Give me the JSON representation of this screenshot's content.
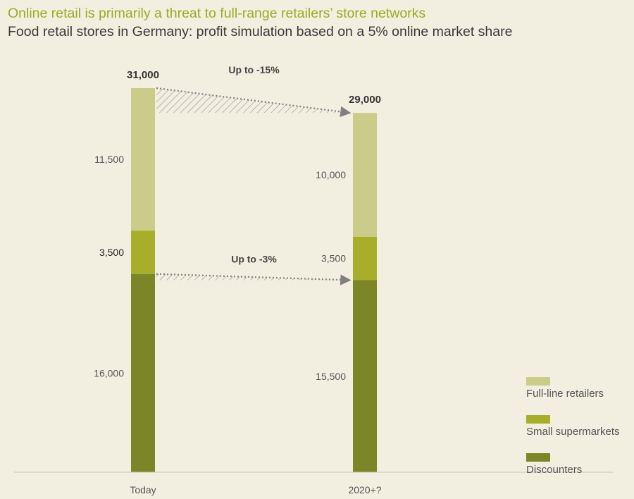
{
  "header": {
    "title": "Online retail is primarily a threat to full-range retailers’ store networks",
    "subtitle": "Food retail stores in Germany: profit simulation based on a 5% online market share"
  },
  "colors": {
    "background": "#f2efe1",
    "full_line": "#cccc8a",
    "small_supermarkets": "#a8ae2a",
    "discounters": "#7b8627",
    "title": "#97ad1f",
    "text": "#3a3a3a",
    "arrow": "#808080"
  },
  "chart_data": {
    "type": "bar",
    "stacked": true,
    "categories": [
      "Today",
      "2020+?"
    ],
    "totals": [
      "31,000",
      "29,000"
    ],
    "total_values": [
      31000,
      29000
    ],
    "series": [
      {
        "name": "Discounters",
        "values": [
          16000,
          15500
        ],
        "labels": [
          "16,000",
          "15,500"
        ],
        "color": "#7b8627"
      },
      {
        "name": "Small supermarkets",
        "values": [
          3500,
          3500
        ],
        "labels": [
          "3,500",
          "3,500"
        ],
        "color": "#a8ae2a"
      },
      {
        "name": "Full-line retailers",
        "values": [
          11500,
          10000
        ],
        "labels": [
          "11,500",
          "10,000"
        ],
        "color": "#cccc8a"
      }
    ],
    "annotations": [
      {
        "text": "Up to -15%",
        "from_series": "Full-line retailers"
      },
      {
        "text": "Up to -3%",
        "from_series": "Discounters"
      }
    ],
    "legend": {
      "placement": "bottom-right",
      "items": [
        "Full-line retailers",
        "Small supermarkets",
        "Discounters"
      ]
    },
    "ylim": [
      0,
      31000
    ],
    "grid": false
  }
}
